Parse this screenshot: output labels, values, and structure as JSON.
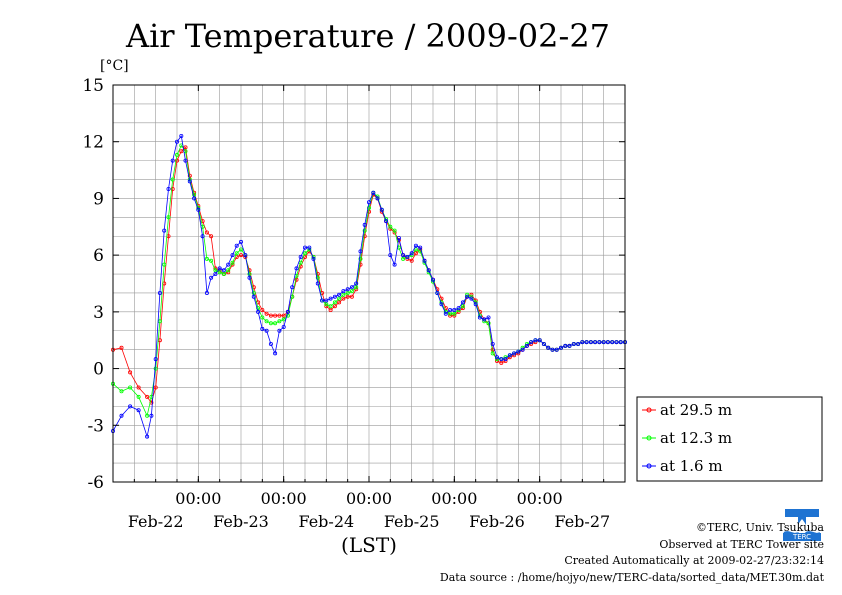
{
  "chart_data": {
    "type": "line",
    "title": "Air Temperature / 2009-02-27",
    "ylabel": "[°C]",
    "xlabel": "(LST)",
    "ylim": [
      -6,
      15
    ],
    "yticks": [
      15,
      12,
      9,
      6,
      3,
      0,
      -3,
      -6
    ],
    "grid": true,
    "legend_position": "right",
    "x_unit": "day",
    "xlim": [
      -2.0,
      4.0
    ],
    "midnight_labels": [
      "00:00",
      "00:00",
      "00:00",
      "00:00",
      "00:00"
    ],
    "date_labels": [
      "Feb-22",
      "Feb-23",
      "Feb-24",
      "Feb-25",
      "Feb-26",
      "Feb-27"
    ],
    "series": [
      {
        "name": "at 29.5 m",
        "color": "#ff0000",
        "x": [
          -2.0,
          -1.9,
          -1.8,
          -1.7,
          -1.6,
          -1.55,
          -1.5,
          -1.45,
          -1.4,
          -1.35,
          -1.3,
          -1.25,
          -1.2,
          -1.15,
          -1.1,
          -1.05,
          -1.0,
          -0.95,
          -0.9,
          -0.85,
          -0.8,
          -0.75,
          -0.7,
          -0.65,
          -0.6,
          -0.55,
          -0.5,
          -0.45,
          -0.4,
          -0.35,
          -0.3,
          -0.25,
          -0.2,
          -0.15,
          -0.1,
          -0.05,
          0.0,
          0.05,
          0.1,
          0.15,
          0.2,
          0.25,
          0.3,
          0.35,
          0.4,
          0.45,
          0.5,
          0.55,
          0.6,
          0.65,
          0.7,
          0.75,
          0.8,
          0.85,
          0.9,
          0.95,
          1.0,
          1.05,
          1.1,
          1.15,
          1.2,
          1.25,
          1.3,
          1.35,
          1.4,
          1.45,
          1.5,
          1.55,
          1.6,
          1.65,
          1.7,
          1.75,
          1.8,
          1.85,
          1.9,
          1.95,
          2.0,
          2.05,
          2.1,
          2.15,
          2.2,
          2.25,
          2.3,
          2.35,
          2.4,
          2.45,
          2.5,
          2.55,
          2.6,
          2.65,
          2.7,
          2.75,
          2.8,
          2.85,
          2.9,
          2.95,
          3.0,
          3.05,
          3.1,
          3.15,
          3.2,
          3.25,
          3.3,
          3.35,
          3.4,
          3.45,
          3.5,
          3.55,
          3.6,
          3.65,
          3.7,
          3.75,
          3.8,
          3.85,
          3.9,
          3.95,
          4.0
        ],
        "values": [
          1.0,
          1.1,
          -0.2,
          -1.0,
          -1.5,
          -1.8,
          -1.0,
          1.5,
          4.5,
          7.0,
          9.5,
          11.0,
          11.5,
          11.7,
          10.2,
          9.3,
          8.6,
          7.8,
          7.2,
          7.0,
          5.3,
          5.2,
          5.0,
          5.1,
          5.5,
          5.9,
          6.0,
          5.9,
          5.2,
          4.3,
          3.5,
          3.1,
          2.9,
          2.8,
          2.8,
          2.8,
          2.8,
          3.0,
          3.8,
          4.7,
          5.4,
          5.9,
          6.2,
          5.9,
          5.0,
          4.0,
          3.3,
          3.1,
          3.3,
          3.5,
          3.7,
          3.8,
          3.8,
          4.2,
          5.5,
          7.0,
          8.3,
          9.2,
          9.0,
          8.3,
          7.8,
          7.4,
          7.2,
          6.8,
          6.0,
          5.8,
          5.7,
          6.1,
          6.3,
          5.7,
          5.2,
          4.7,
          4.2,
          3.7,
          3.2,
          2.8,
          2.8,
          3.0,
          3.2,
          3.8,
          3.9,
          3.6,
          3.0,
          2.6,
          2.4,
          1.0,
          0.4,
          0.3,
          0.4,
          0.6,
          0.7,
          0.8,
          1.0,
          1.2,
          1.3,
          1.4,
          1.5,
          1.3,
          1.1,
          1.0,
          1.0,
          1.1,
          1.2,
          1.2,
          1.3,
          1.3,
          1.4,
          1.4,
          1.4,
          1.4,
          1.4,
          1.4,
          1.4,
          1.4,
          1.4,
          1.4,
          1.4
        ]
      },
      {
        "name": "at 12.3 m",
        "color": "#00ff00",
        "x": [
          -2.0,
          -1.9,
          -1.8,
          -1.7,
          -1.6,
          -1.55,
          -1.5,
          -1.45,
          -1.4,
          -1.35,
          -1.3,
          -1.25,
          -1.2,
          -1.15,
          -1.1,
          -1.05,
          -1.0,
          -0.95,
          -0.9,
          -0.85,
          -0.8,
          -0.75,
          -0.7,
          -0.65,
          -0.6,
          -0.55,
          -0.5,
          -0.45,
          -0.4,
          -0.35,
          -0.3,
          -0.25,
          -0.2,
          -0.15,
          -0.1,
          -0.05,
          0.0,
          0.05,
          0.1,
          0.15,
          0.2,
          0.25,
          0.3,
          0.35,
          0.4,
          0.45,
          0.5,
          0.55,
          0.6,
          0.65,
          0.7,
          0.75,
          0.8,
          0.85,
          0.9,
          0.95,
          1.0,
          1.05,
          1.1,
          1.15,
          1.2,
          1.25,
          1.3,
          1.35,
          1.4,
          1.45,
          1.5,
          1.55,
          1.6,
          1.65,
          1.7,
          1.75,
          1.8,
          1.85,
          1.9,
          1.95,
          2.0,
          2.05,
          2.1,
          2.15,
          2.2,
          2.25,
          2.3,
          2.35,
          2.4,
          2.45,
          2.5,
          2.55,
          2.6,
          2.65,
          2.7,
          2.75,
          2.8,
          2.85,
          2.9,
          2.95,
          3.0,
          3.05,
          3.1,
          3.15,
          3.2,
          3.25,
          3.3,
          3.35,
          3.4,
          3.45,
          3.5,
          3.55,
          3.6,
          3.65,
          3.7,
          3.75,
          3.8,
          3.85,
          3.9,
          3.95,
          4.0
        ],
        "values": [
          -0.8,
          -1.2,
          -1.0,
          -1.5,
          -2.5,
          -1.5,
          0.0,
          2.5,
          5.5,
          8.0,
          10.0,
          11.3,
          11.8,
          11.5,
          10.0,
          9.2,
          8.5,
          7.5,
          5.8,
          5.7,
          5.2,
          5.1,
          5.0,
          5.2,
          5.6,
          6.1,
          6.3,
          6.0,
          5.0,
          4.0,
          3.2,
          2.7,
          2.5,
          2.4,
          2.4,
          2.5,
          2.6,
          2.8,
          3.8,
          4.9,
          5.6,
          6.1,
          6.3,
          5.9,
          4.8,
          3.6,
          3.4,
          3.3,
          3.5,
          3.7,
          3.9,
          4.0,
          4.1,
          4.3,
          5.8,
          7.3,
          8.5,
          9.3,
          9.1,
          8.4,
          7.9,
          7.5,
          7.3,
          6.4,
          5.8,
          5.9,
          6.0,
          6.3,
          6.2,
          5.6,
          5.1,
          4.6,
          4.0,
          3.5,
          3.0,
          2.9,
          2.9,
          3.1,
          3.3,
          3.9,
          3.8,
          3.5,
          2.8,
          2.5,
          2.4,
          0.8,
          0.5,
          0.5,
          0.6,
          0.7,
          0.8,
          0.9,
          1.1,
          1.3,
          1.4,
          1.5,
          1.5,
          1.3,
          1.1,
          1.0,
          1.0,
          1.1,
          1.2,
          1.2,
          1.3,
          1.3,
          1.4,
          1.4,
          1.4,
          1.4,
          1.4,
          1.4,
          1.4,
          1.4,
          1.4,
          1.4,
          1.4
        ]
      },
      {
        "name": "at 1.6 m",
        "color": "#0000ff",
        "x": [
          -2.0,
          -1.9,
          -1.8,
          -1.7,
          -1.6,
          -1.55,
          -1.5,
          -1.45,
          -1.4,
          -1.35,
          -1.3,
          -1.25,
          -1.2,
          -1.15,
          -1.1,
          -1.05,
          -1.0,
          -0.95,
          -0.9,
          -0.85,
          -0.8,
          -0.75,
          -0.7,
          -0.65,
          -0.6,
          -0.55,
          -0.5,
          -0.45,
          -0.4,
          -0.35,
          -0.3,
          -0.25,
          -0.2,
          -0.15,
          -0.1,
          -0.05,
          0.0,
          0.05,
          0.1,
          0.15,
          0.2,
          0.25,
          0.3,
          0.35,
          0.4,
          0.45,
          0.5,
          0.55,
          0.6,
          0.65,
          0.7,
          0.75,
          0.8,
          0.85,
          0.9,
          0.95,
          1.0,
          1.05,
          1.1,
          1.15,
          1.2,
          1.25,
          1.3,
          1.35,
          1.4,
          1.45,
          1.5,
          1.55,
          1.6,
          1.65,
          1.7,
          1.75,
          1.8,
          1.85,
          1.9,
          1.95,
          2.0,
          2.05,
          2.1,
          2.15,
          2.2,
          2.25,
          2.3,
          2.35,
          2.4,
          2.45,
          2.5,
          2.55,
          2.6,
          2.65,
          2.7,
          2.75,
          2.8,
          2.85,
          2.9,
          2.95,
          3.0,
          3.05,
          3.1,
          3.15,
          3.2,
          3.25,
          3.3,
          3.35,
          3.4,
          3.45,
          3.5,
          3.55,
          3.6,
          3.65,
          3.7,
          3.75,
          3.8,
          3.85,
          3.9,
          3.95,
          4.0
        ],
        "values": [
          -3.3,
          -2.5,
          -2.0,
          -2.2,
          -3.6,
          -2.5,
          0.5,
          4.0,
          7.3,
          9.5,
          11.0,
          12.0,
          12.3,
          11.0,
          9.9,
          9.0,
          8.4,
          7.0,
          4.0,
          4.8,
          5.0,
          5.3,
          5.2,
          5.5,
          6.0,
          6.5,
          6.7,
          6.0,
          4.8,
          3.8,
          3.0,
          2.1,
          2.0,
          1.3,
          0.8,
          2.0,
          2.2,
          3.0,
          4.3,
          5.3,
          5.9,
          6.4,
          6.4,
          5.8,
          4.5,
          3.6,
          3.6,
          3.7,
          3.8,
          3.9,
          4.1,
          4.2,
          4.3,
          4.5,
          6.2,
          7.6,
          8.8,
          9.3,
          9.0,
          8.4,
          7.8,
          6.0,
          5.5,
          6.9,
          6.0,
          5.9,
          6.1,
          6.5,
          6.4,
          5.7,
          5.2,
          4.7,
          4.0,
          3.4,
          2.9,
          3.1,
          3.1,
          3.2,
          3.5,
          3.8,
          3.7,
          3.4,
          2.7,
          2.6,
          2.7,
          1.3,
          0.6,
          0.5,
          0.5,
          0.7,
          0.8,
          0.9,
          1.0,
          1.2,
          1.4,
          1.5,
          1.5,
          1.3,
          1.1,
          1.0,
          1.0,
          1.1,
          1.2,
          1.2,
          1.3,
          1.3,
          1.4,
          1.4,
          1.4,
          1.4,
          1.4,
          1.4,
          1.4,
          1.4,
          1.4,
          1.4,
          1.4
        ]
      }
    ]
  },
  "credits": {
    "copyright": "©TERC, Univ. Tsukuba",
    "site": "Observed at TERC Tower site",
    "created": "Created Automatically at 2009-02-27/23:32:14",
    "source": "Data source : /home/hojyo/new/TERC-data/sorted_data/MET.30m.dat"
  },
  "logo": {
    "name": "terc-logo",
    "text": "TERC",
    "color": "#1e73d2"
  }
}
